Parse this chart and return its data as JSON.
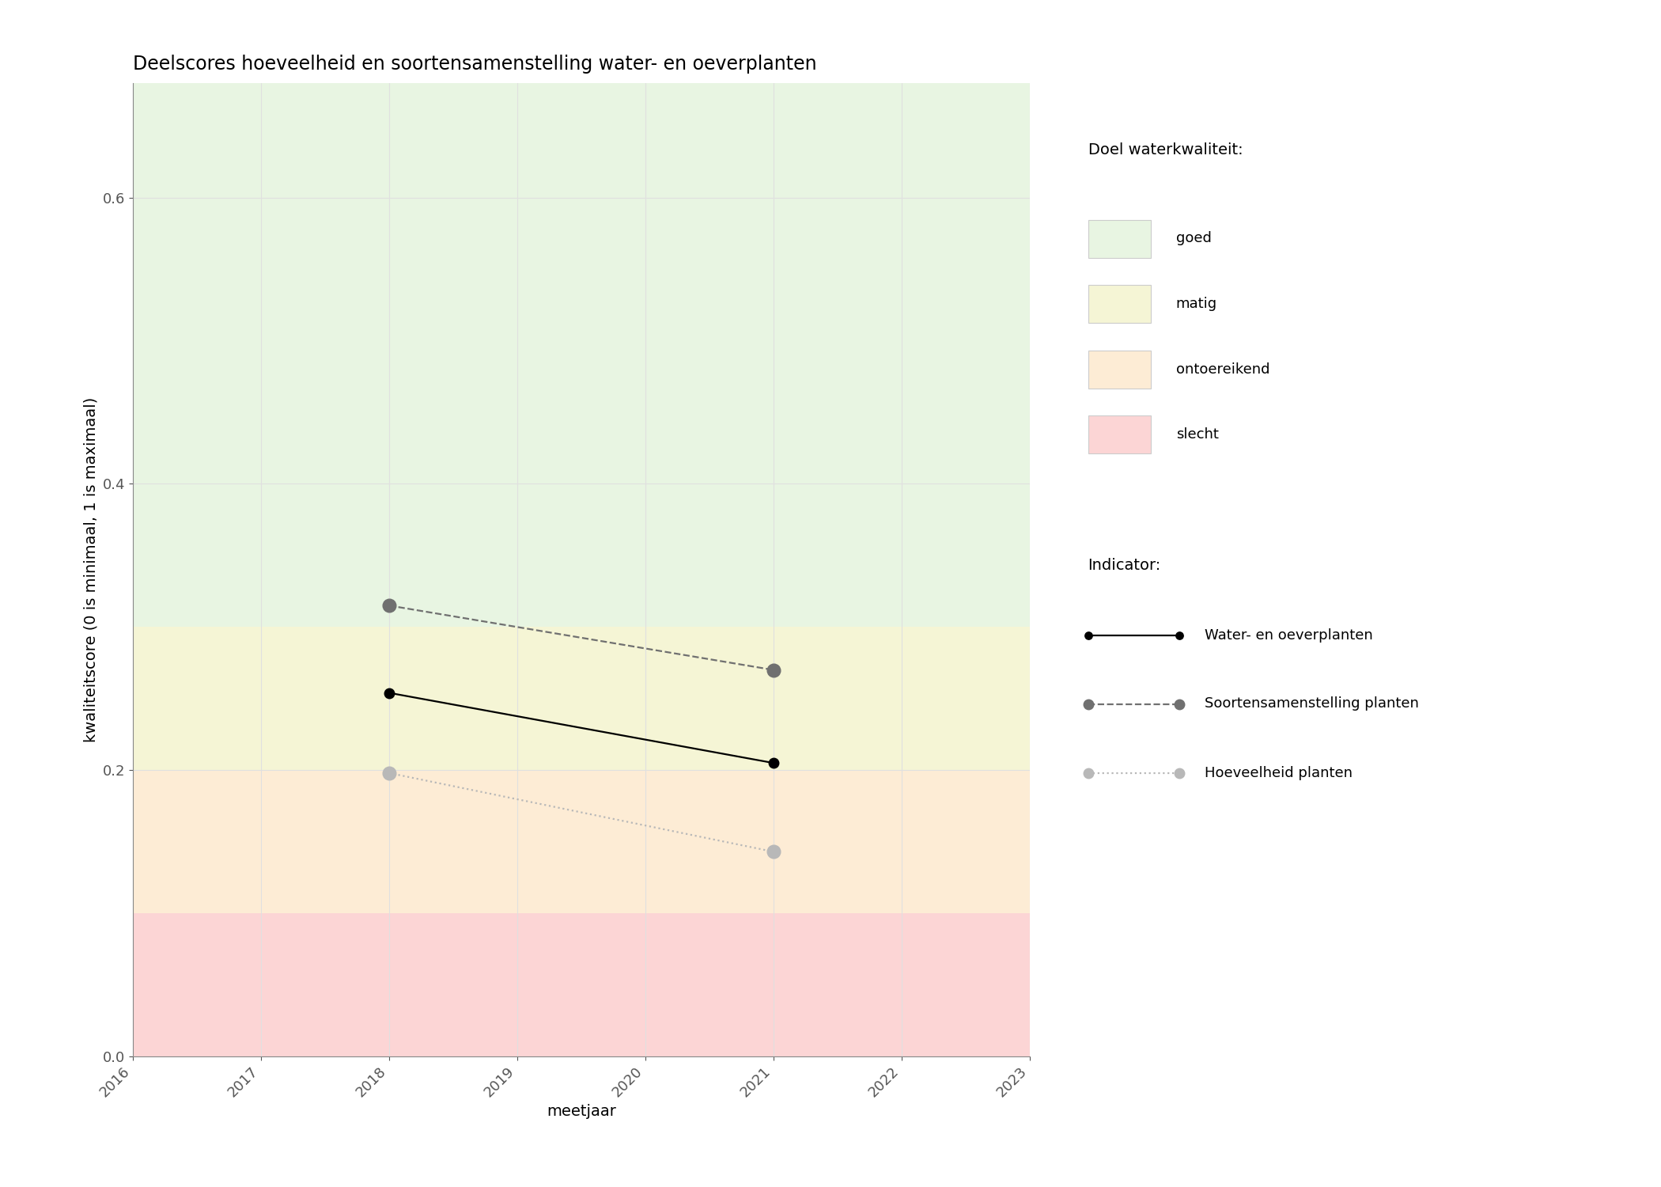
{
  "title": "Deelscores hoeveelheid en soortensamenstelling water- en oeverplanten",
  "xlabel": "meetjaar",
  "ylabel": "kwaliteitscore (0 is minimaal, 1 is maximaal)",
  "xlim": [
    2016,
    2023
  ],
  "ylim": [
    0.0,
    0.68
  ],
  "xticks": [
    2016,
    2017,
    2018,
    2019,
    2020,
    2021,
    2022,
    2023
  ],
  "yticks": [
    0.0,
    0.2,
    0.4,
    0.6
  ],
  "bg_color": "#ffffff",
  "plot_bg_color": "#ffffff",
  "zones": [
    {
      "label": "goed",
      "ymin": 0.3,
      "ymax": 0.68,
      "color": "#e8f5e2"
    },
    {
      "label": "matig",
      "ymin": 0.2,
      "ymax": 0.3,
      "color": "#f5f5d5"
    },
    {
      "label": "ontoereikend",
      "ymin": 0.1,
      "ymax": 0.2,
      "color": "#fdecd5"
    },
    {
      "label": "slecht",
      "ymin": 0.0,
      "ymax": 0.1,
      "color": "#fcd5d5"
    }
  ],
  "series": [
    {
      "name": "Water- en oeverplanten",
      "x": [
        2018,
        2021
      ],
      "y": [
        0.254,
        0.205
      ],
      "color": "#000000",
      "linestyle": "solid",
      "linewidth": 1.6,
      "markersize": 9,
      "marker": "o",
      "zorder": 5
    },
    {
      "name": "Soortensamenstelling planten",
      "x": [
        2018,
        2021
      ],
      "y": [
        0.315,
        0.27
      ],
      "color": "#707070",
      "linestyle": "dashed",
      "linewidth": 1.6,
      "markersize": 12,
      "marker": "o",
      "zorder": 4
    },
    {
      "name": "Hoeveelheid planten",
      "x": [
        2018,
        2021
      ],
      "y": [
        0.198,
        0.143
      ],
      "color": "#b8b8b8",
      "linestyle": "dotted",
      "linewidth": 1.6,
      "markersize": 12,
      "marker": "o",
      "zorder": 3
    }
  ],
  "legend_title_quality": "Doel waterkwaliteit:",
  "legend_title_indicator": "Indicator:",
  "title_fontsize": 17,
  "label_fontsize": 14,
  "tick_fontsize": 13,
  "legend_fontsize": 13
}
